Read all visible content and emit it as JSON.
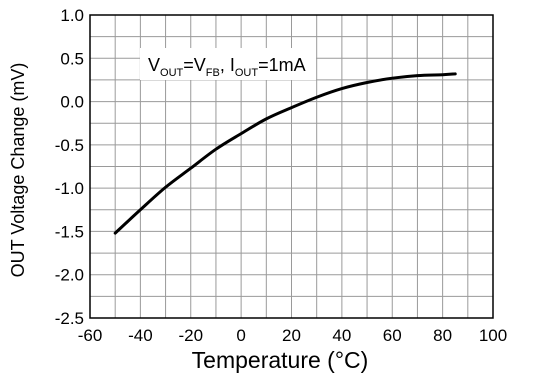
{
  "chart_data": {
    "type": "line",
    "xlabel": "Temperature (°C)",
    "ylabel": "OUT Voltage Change (mV)",
    "xlim": [
      -60,
      100
    ],
    "ylim": [
      -2.5,
      1.0
    ],
    "x_ticks": [
      -60,
      -40,
      -20,
      0,
      20,
      40,
      60,
      80,
      100
    ],
    "x_tick_labels": [
      "-60",
      "-40",
      "-20",
      "0",
      "20",
      "40",
      "60",
      "80",
      "100"
    ],
    "y_ticks": [
      1.0,
      0.5,
      0.0,
      -0.5,
      -1.0,
      -1.5,
      -2.0,
      -2.5
    ],
    "y_tick_labels": [
      "1.0",
      "0.5",
      "0.0",
      "-0.5",
      "-1.0",
      "-1.5",
      "-2.0",
      "-2.5"
    ],
    "grid": true,
    "annotation": {
      "parts": [
        {
          "text": "V",
          "sub": false
        },
        {
          "text": "OUT",
          "sub": true
        },
        {
          "text": "=V",
          "sub": false
        },
        {
          "text": "FB",
          "sub": true
        },
        {
          "text": ", I",
          "sub": false
        },
        {
          "text": "OUT",
          "sub": true
        },
        {
          "text": "=1mA",
          "sub": false
        }
      ]
    },
    "series": [
      {
        "x": [
          -50,
          -40,
          -30,
          -20,
          -10,
          0,
          10,
          20,
          30,
          40,
          50,
          60,
          70,
          80,
          85
        ],
        "y": [
          -1.52,
          -1.25,
          -0.99,
          -0.77,
          -0.55,
          -0.37,
          -0.2,
          -0.07,
          0.05,
          0.15,
          0.22,
          0.27,
          0.3,
          0.31,
          0.32
        ]
      }
    ]
  }
}
